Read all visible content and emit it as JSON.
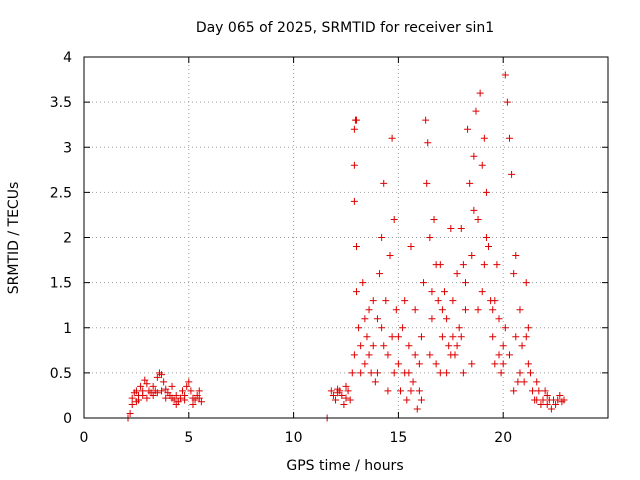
{
  "chart_data": {
    "type": "scatter",
    "title": "Day 065 of 2025, SRMTID for receiver sin1",
    "xlabel": "GPS time / hours",
    "ylabel": "SRMTID / TECUs",
    "xlim": [
      0,
      25
    ],
    "ylim": [
      0,
      4
    ],
    "grid": true,
    "marker": "plus",
    "color": "#dd0000",
    "xticks": [
      0,
      5,
      10,
      15,
      20
    ],
    "xtick_labels": [
      "0",
      "5",
      "10",
      "15",
      "20"
    ],
    "yticks": [
      0,
      0.5,
      1,
      1.5,
      2,
      2.5,
      3,
      3.5,
      4
    ],
    "ytick_labels": [
      "0",
      "0.5",
      "1",
      "1.5",
      "2",
      "2.5",
      "3",
      "3.5",
      "4"
    ],
    "series": [
      {
        "name": "SRMTID",
        "points": [
          [
            2.1,
            0.0
          ],
          [
            2.2,
            0.05
          ],
          [
            2.3,
            0.22
          ],
          [
            2.4,
            0.28
          ],
          [
            2.5,
            0.3
          ],
          [
            2.6,
            0.25
          ],
          [
            2.7,
            0.35
          ],
          [
            2.8,
            0.3
          ],
          [
            2.9,
            0.42
          ],
          [
            3.0,
            0.38
          ],
          [
            3.1,
            0.3
          ],
          [
            3.2,
            0.28
          ],
          [
            3.3,
            0.25
          ],
          [
            3.4,
            0.3
          ],
          [
            3.5,
            0.45
          ],
          [
            3.6,
            0.5
          ],
          [
            3.7,
            0.48
          ],
          [
            3.8,
            0.4
          ],
          [
            3.9,
            0.32
          ],
          [
            4.0,
            0.28
          ],
          [
            4.1,
            0.25
          ],
          [
            4.2,
            0.22
          ],
          [
            4.3,
            0.2
          ],
          [
            4.4,
            0.25
          ],
          [
            4.5,
            0.18
          ],
          [
            4.6,
            0.22
          ],
          [
            4.7,
            0.3
          ],
          [
            4.8,
            0.25
          ],
          [
            4.9,
            0.35
          ],
          [
            5.0,
            0.4
          ],
          [
            5.1,
            0.3
          ],
          [
            5.2,
            0.22
          ],
          [
            5.3,
            0.2
          ],
          [
            5.4,
            0.25
          ],
          [
            5.5,
            0.3
          ],
          [
            5.6,
            0.18
          ],
          [
            2.6,
            0.2
          ],
          [
            3.3,
            0.35
          ],
          [
            3.7,
            0.3
          ],
          [
            4.2,
            0.35
          ],
          [
            2.3,
            0.15
          ],
          [
            2.5,
            0.18
          ],
          [
            2.8,
            0.25
          ],
          [
            3.0,
            0.22
          ],
          [
            3.5,
            0.28
          ],
          [
            3.9,
            0.22
          ],
          [
            4.4,
            0.15
          ],
          [
            4.8,
            0.2
          ],
          [
            5.2,
            0.15
          ],
          [
            5.5,
            0.22
          ],
          [
            11.6,
            0.0
          ],
          [
            11.8,
            0.3
          ],
          [
            11.9,
            0.25
          ],
          [
            12.0,
            0.2
          ],
          [
            12.1,
            0.28
          ],
          [
            12.2,
            0.3
          ],
          [
            12.3,
            0.25
          ],
          [
            12.4,
            0.15
          ],
          [
            12.5,
            0.22
          ],
          [
            12.6,
            0.3
          ],
          [
            12.7,
            0.2
          ],
          [
            12.8,
            0.5
          ],
          [
            12.9,
            0.7
          ],
          [
            12.95,
            3.3
          ],
          [
            13.0,
            3.3
          ],
          [
            12.9,
            3.2
          ],
          [
            12.9,
            2.4
          ],
          [
            12.9,
            2.8
          ],
          [
            13.0,
            1.9
          ],
          [
            13.0,
            1.4
          ],
          [
            13.1,
            1.0
          ],
          [
            13.2,
            0.8
          ],
          [
            13.3,
            1.5
          ],
          [
            13.4,
            0.6
          ],
          [
            13.5,
            0.9
          ],
          [
            13.6,
            1.2
          ],
          [
            13.7,
            0.5
          ],
          [
            13.8,
            0.8
          ],
          [
            13.9,
            0.4
          ],
          [
            14.0,
            1.1
          ],
          [
            14.1,
            1.6
          ],
          [
            14.2,
            2.0
          ],
          [
            14.3,
            2.6
          ],
          [
            14.4,
            1.3
          ],
          [
            14.5,
            0.7
          ],
          [
            14.6,
            1.8
          ],
          [
            14.7,
            3.1
          ],
          [
            14.8,
            2.2
          ],
          [
            14.9,
            1.2
          ],
          [
            15.0,
            0.6
          ],
          [
            15.1,
            0.3
          ],
          [
            15.2,
            1.0
          ],
          [
            15.3,
            0.5
          ],
          [
            15.4,
            0.2
          ],
          [
            15.5,
            0.8
          ],
          [
            15.6,
            1.9
          ],
          [
            15.7,
            0.4
          ],
          [
            15.8,
            1.2
          ],
          [
            15.9,
            0.1
          ],
          [
            16.0,
            0.6
          ],
          [
            16.1,
            0.2
          ],
          [
            16.2,
            1.5
          ],
          [
            16.3,
            3.3
          ],
          [
            16.35,
            2.6
          ],
          [
            16.4,
            3.05
          ],
          [
            16.5,
            2.0
          ],
          [
            16.6,
            1.1
          ],
          [
            16.7,
            2.2
          ],
          [
            16.8,
            1.7
          ],
          [
            16.9,
            1.3
          ],
          [
            17.0,
            1.7
          ],
          [
            17.1,
            0.9
          ],
          [
            17.2,
            1.4
          ],
          [
            17.3,
            0.5
          ],
          [
            17.4,
            0.8
          ],
          [
            17.5,
            2.1
          ],
          [
            17.6,
            1.3
          ],
          [
            17.7,
            0.7
          ],
          [
            17.8,
            1.6
          ],
          [
            17.9,
            1.0
          ],
          [
            18.0,
            2.1
          ],
          [
            18.1,
            1.7
          ],
          [
            18.2,
            1.2
          ],
          [
            18.3,
            3.2
          ],
          [
            18.4,
            2.6
          ],
          [
            18.5,
            1.8
          ],
          [
            18.6,
            2.9
          ],
          [
            18.7,
            3.4
          ],
          [
            18.8,
            2.2
          ],
          [
            18.9,
            3.6
          ],
          [
            19.0,
            2.8
          ],
          [
            19.1,
            3.1
          ],
          [
            19.2,
            2.5
          ],
          [
            19.3,
            1.9
          ],
          [
            19.4,
            1.3
          ],
          [
            19.5,
            0.9
          ],
          [
            19.6,
            0.6
          ],
          [
            19.7,
            1.7
          ],
          [
            19.8,
            0.7
          ],
          [
            19.9,
            0.5
          ],
          [
            20.0,
            0.8
          ],
          [
            20.1,
            3.8
          ],
          [
            20.2,
            3.5
          ],
          [
            20.3,
            3.1
          ],
          [
            20.4,
            2.7
          ],
          [
            20.5,
            1.6
          ],
          [
            20.6,
            0.9
          ],
          [
            20.7,
            0.4
          ],
          [
            20.8,
            1.2
          ],
          [
            20.9,
            0.8
          ],
          [
            21.0,
            0.4
          ],
          [
            21.1,
            1.5
          ],
          [
            21.2,
            1.0
          ],
          [
            21.3,
            0.5
          ],
          [
            21.4,
            0.3
          ],
          [
            21.5,
            0.2
          ],
          [
            21.6,
            0.4
          ],
          [
            21.7,
            0.3
          ],
          [
            21.8,
            0.15
          ],
          [
            21.9,
            0.2
          ],
          [
            22.0,
            0.3
          ],
          [
            22.1,
            0.15
          ],
          [
            22.2,
            0.2
          ],
          [
            22.3,
            0.1
          ],
          [
            22.4,
            0.2
          ],
          [
            22.5,
            0.15
          ],
          [
            22.6,
            0.2
          ],
          [
            22.7,
            0.25
          ],
          [
            22.8,
            0.18
          ],
          [
            22.9,
            0.2
          ],
          [
            13.2,
            0.5
          ],
          [
            13.6,
            0.7
          ],
          [
            14.0,
            0.5
          ],
          [
            14.5,
            0.3
          ],
          [
            15.0,
            0.9
          ],
          [
            15.5,
            0.5
          ],
          [
            16.0,
            0.3
          ],
          [
            16.5,
            0.7
          ],
          [
            17.0,
            0.5
          ],
          [
            17.5,
            0.7
          ],
          [
            18.0,
            0.9
          ],
          [
            18.5,
            0.6
          ],
          [
            19.0,
            1.4
          ],
          [
            19.5,
            1.2
          ],
          [
            20.0,
            0.6
          ],
          [
            20.5,
            0.3
          ],
          [
            14.2,
            1.0
          ],
          [
            14.8,
            0.5
          ],
          [
            15.3,
            1.3
          ],
          [
            15.8,
            0.7
          ],
          [
            16.8,
            0.6
          ],
          [
            17.3,
            1.1
          ],
          [
            17.8,
            0.8
          ],
          [
            18.2,
            1.5
          ],
          [
            18.8,
            1.2
          ],
          [
            19.2,
            2.0
          ],
          [
            19.8,
            1.1
          ],
          [
            20.3,
            0.7
          ],
          [
            20.8,
            0.5
          ],
          [
            21.2,
            0.6
          ],
          [
            13.4,
            1.1
          ],
          [
            13.8,
            1.3
          ],
          [
            14.3,
            0.8
          ],
          [
            14.7,
            0.9
          ],
          [
            15.6,
            0.3
          ],
          [
            16.1,
            0.9
          ],
          [
            16.6,
            1.4
          ],
          [
            17.1,
            1.2
          ],
          [
            17.6,
            0.9
          ],
          [
            18.1,
            0.5
          ],
          [
            18.6,
            2.3
          ],
          [
            19.1,
            1.7
          ],
          [
            19.6,
            1.3
          ],
          [
            20.1,
            1.0
          ],
          [
            20.6,
            1.8
          ],
          [
            21.1,
            0.9
          ],
          [
            21.6,
            0.2
          ],
          [
            22.1,
            0.25
          ],
          [
            12.5,
            0.35
          ],
          [
            12.1,
            0.32
          ]
        ]
      }
    ]
  }
}
